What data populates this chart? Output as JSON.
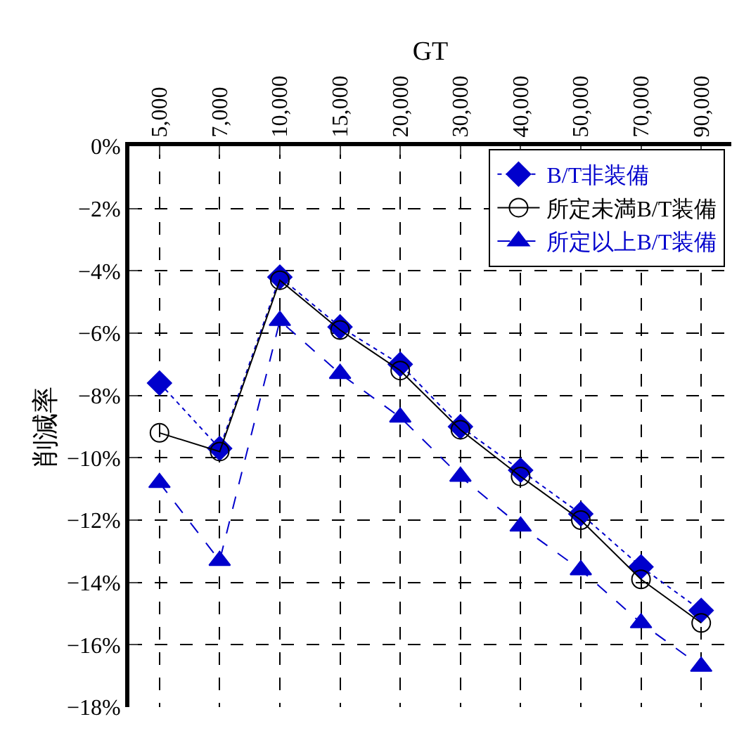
{
  "chart_data": {
    "type": "line",
    "xlabel": "GT",
    "ylabel": "削減率",
    "categories": [
      "5,000",
      "7,000",
      "10,000",
      "15,000",
      "20,000",
      "30,000",
      "40,000",
      "50,000",
      "70,000",
      "90,000"
    ],
    "series": [
      {
        "name": "B/T非装備",
        "color": "#0000cc",
        "marker": "diamond",
        "line_style": "dotted",
        "values": [
          -7.6,
          -9.7,
          -4.2,
          -5.8,
          -7.0,
          -9.0,
          -10.4,
          -11.8,
          -13.5,
          -14.9
        ]
      },
      {
        "name": "所定未満B/T装備",
        "color": "#000000",
        "marker": "circle",
        "line_style": "solid",
        "values": [
          -9.2,
          -9.8,
          -4.3,
          -5.9,
          -7.2,
          -9.1,
          -10.6,
          -12.0,
          -13.9,
          -15.3
        ]
      },
      {
        "name": "所定以上B/T装備",
        "color": "#0000cc",
        "marker": "triangle",
        "line_style": "dashed",
        "values": [
          -10.8,
          -13.3,
          -5.6,
          -7.3,
          -8.7,
          -10.6,
          -12.2,
          -13.6,
          -15.3,
          -16.7
        ]
      }
    ],
    "ylim": [
      -18,
      0
    ],
    "yticks": [
      {
        "value": 0,
        "label": "0%"
      },
      {
        "value": -2,
        "label": "−2%"
      },
      {
        "value": -4,
        "label": "−4%"
      },
      {
        "value": -6,
        "label": "−6%"
      },
      {
        "value": -8,
        "label": "−8%"
      },
      {
        "value": -10,
        "label": "−10%"
      },
      {
        "value": -12,
        "label": "−12%"
      },
      {
        "value": -14,
        "label": "−14%"
      },
      {
        "value": -16,
        "label": "−16%"
      },
      {
        "value": -18,
        "label": "−18%"
      }
    ],
    "grid": true,
    "legend": "top right"
  }
}
